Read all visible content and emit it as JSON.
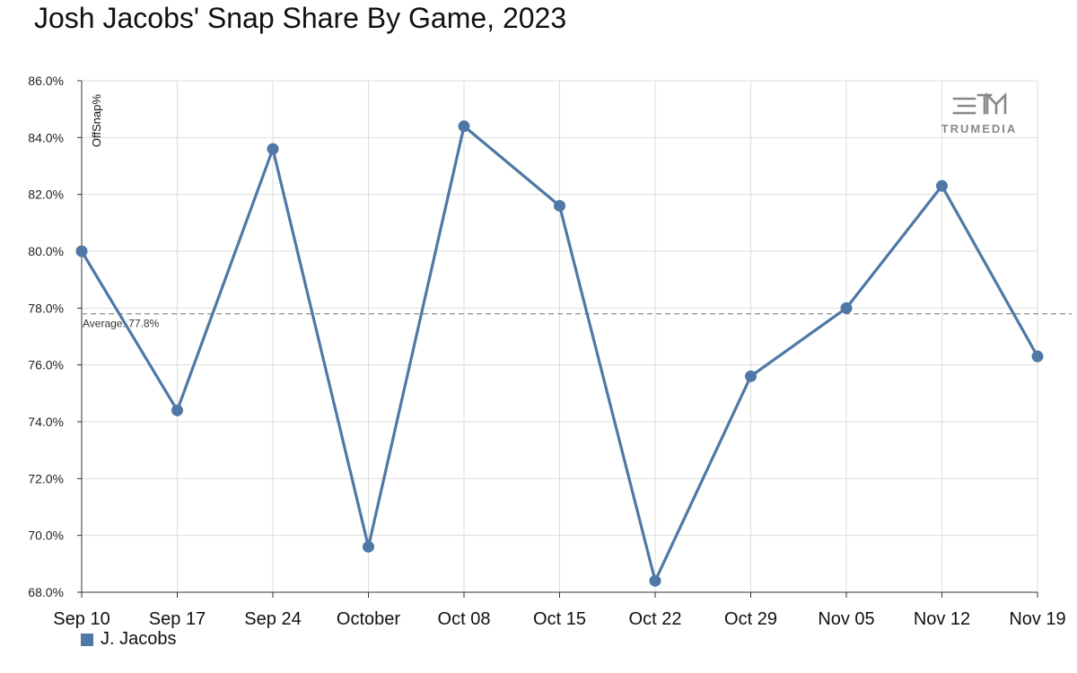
{
  "title": "Josh Jacobs' Snap Share By Game, 2023",
  "brand": {
    "name": "TRUMEDIA",
    "icon": "trumedia-logo-icon",
    "color": "#888888"
  },
  "colors": {
    "series": "#4e78a6",
    "grid": "#dddddd",
    "average_line": "#999999"
  },
  "chart_data": {
    "type": "line",
    "x": [
      "Sep 10",
      "Sep 17",
      "Sep 24",
      "October",
      "Oct 08",
      "Oct 15",
      "Oct 22",
      "Oct 29",
      "Nov 05",
      "Nov 12",
      "Nov 19"
    ],
    "series": [
      {
        "name": "J. Jacobs",
        "values": [
          80.0,
          74.4,
          83.6,
          69.6,
          84.4,
          81.6,
          68.4,
          75.6,
          78.0,
          82.3,
          76.3
        ]
      }
    ],
    "ylabel": "OffSnap%",
    "ylim": [
      68,
      86
    ],
    "yticks": [
      68,
      70,
      72,
      74,
      76,
      78,
      80,
      82,
      84,
      86
    ],
    "ytick_labels": [
      "68.0%",
      "70.0%",
      "72.0%",
      "74.0%",
      "76.0%",
      "78.0%",
      "80.0%",
      "82.0%",
      "84.0%",
      "86.0%"
    ],
    "average": {
      "value": 77.8,
      "label": "Average: 77.8%"
    },
    "grid": true,
    "legend": "bottom-left"
  }
}
